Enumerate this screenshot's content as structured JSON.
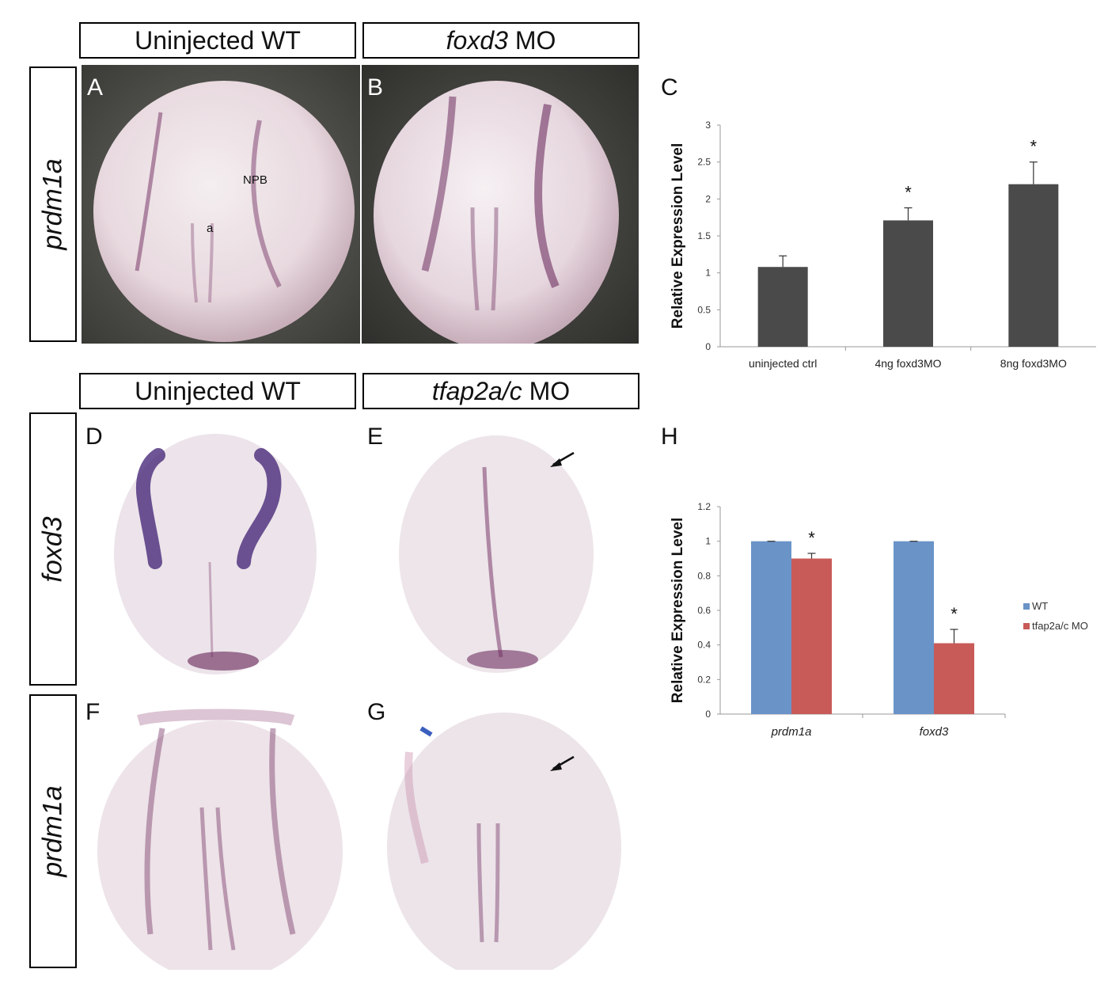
{
  "figure": {
    "top_headers": {
      "left_top": "Uninjected WT",
      "right_top_gene": "foxd3",
      "right_top_suffix": " MO",
      "left_bottom": "Uninjected WT",
      "right_bottom_gene": "tfap2a/c",
      "right_bottom_suffix": " MO"
    },
    "row_labels": {
      "row1": "prdm1a",
      "row2": "foxd3",
      "row3": "prdm1a"
    },
    "panel_letters": {
      "A": "A",
      "B": "B",
      "C": "C",
      "D": "D",
      "E": "E",
      "F": "F",
      "G": "G",
      "H": "H"
    },
    "annotations": {
      "npb": "NPB",
      "a": "a"
    },
    "colors": {
      "bar_dark": "#4a4a4a",
      "wt_blue": "#6a93c8",
      "mo_red": "#c85a58",
      "stain_purple": "#7a3a6a"
    }
  },
  "chart_data": [
    {
      "type": "bar",
      "panel": "C",
      "categories": [
        "uninjected ctrl",
        "4ng foxd3MO",
        "8ng foxd3MO"
      ],
      "values": [
        1.08,
        1.71,
        2.2
      ],
      "errors": [
        0.15,
        0.17,
        0.3
      ],
      "significance": [
        "",
        "*",
        "*"
      ],
      "ylabel": "Relative Expression Level",
      "ylim": [
        0,
        3
      ],
      "yticks": [
        "0",
        "0.5",
        "1",
        "1.5",
        "2",
        "2.5",
        "3"
      ],
      "bar_color": "#4a4a4a"
    },
    {
      "type": "bar",
      "panel": "H",
      "categories": [
        "prdm1a",
        "foxd3"
      ],
      "series": [
        {
          "name": "WT",
          "values": [
            1.0,
            1.0
          ],
          "errors": [
            0.0,
            0.0
          ],
          "color": "#6a93c8"
        },
        {
          "name": "tfap2a/c MO",
          "values": [
            0.9,
            0.41
          ],
          "errors": [
            0.03,
            0.08
          ],
          "color": "#c85a58"
        }
      ],
      "significance": [
        "*",
        "*"
      ],
      "ylabel": "Relative Expression Level",
      "ylim": [
        0,
        1.2
      ],
      "yticks": [
        "0",
        "0.2",
        "0.4",
        "0.6",
        "0.8",
        "1",
        "1.2"
      ],
      "legend": "right"
    }
  ]
}
